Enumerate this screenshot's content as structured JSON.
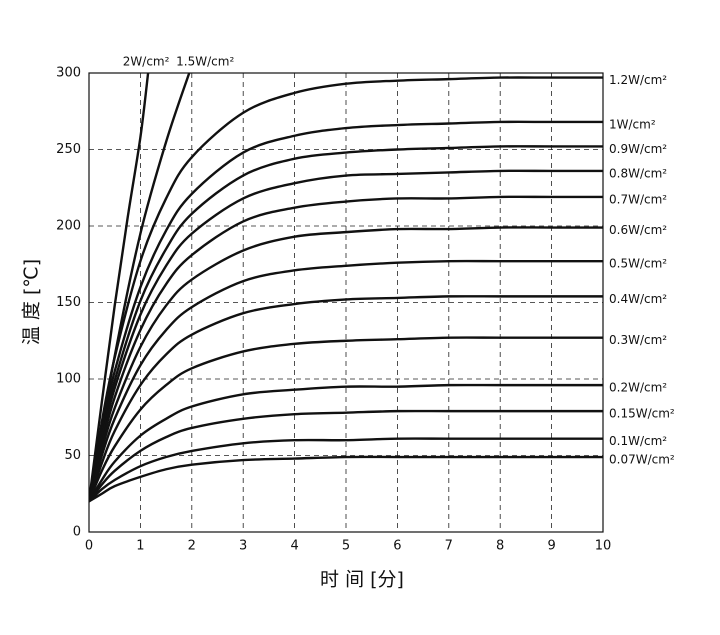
{
  "chart_data": {
    "type": "line",
    "xlabel": "时 间 [分]",
    "ylabel": "温 度 [℃]",
    "x": [
      0,
      0.25,
      0.5,
      1,
      1.5,
      2,
      3,
      4,
      5,
      6,
      7,
      8,
      9,
      10
    ],
    "xlim": [
      0,
      10
    ],
    "ylim": [
      0,
      300
    ],
    "xticks": [
      0,
      1,
      2,
      3,
      4,
      5,
      6,
      7,
      8,
      9,
      10
    ],
    "yticks": [
      0,
      50,
      100,
      150,
      200,
      250,
      300
    ],
    "grid": true,
    "color": "#111111",
    "series": [
      {
        "name": "2W/cm²",
        "x": [
          0,
          0.25,
          0.5,
          0.75,
          1,
          1.15
        ],
        "values": [
          20,
          85,
          148,
          205,
          258,
          300
        ]
      },
      {
        "name": "1.5W/cm²",
        "x": [
          0,
          0.5,
          1,
          1.5,
          1.95
        ],
        "values": [
          20,
          115,
          195,
          255,
          300
        ]
      },
      {
        "name": "1.2W/cm²",
        "values": [
          20,
          72,
          114,
          177,
          218,
          245,
          274,
          287,
          293,
          295,
          296,
          297,
          297,
          297
        ]
      },
      {
        "name": "1W/cm²",
        "values": [
          20,
          67,
          105,
          160,
          197,
          221,
          248,
          259,
          264,
          266,
          267,
          268,
          268,
          268
        ]
      },
      {
        "name": "0.9W/cm²",
        "values": [
          20,
          64,
          99,
          151,
          185,
          208,
          233,
          244,
          248,
          250,
          251,
          252,
          252,
          252
        ]
      },
      {
        "name": "0.8W/cm²",
        "values": [
          20,
          61,
          94,
          142,
          174,
          195,
          218,
          228,
          233,
          234,
          235,
          236,
          236,
          236
        ]
      },
      {
        "name": "0.7W/cm²",
        "values": [
          20,
          57,
          88,
          132,
          162,
          181,
          203,
          212,
          216,
          218,
          218,
          219,
          219,
          219
        ]
      },
      {
        "name": "0.6W/cm²",
        "values": [
          20,
          54,
          81,
          121,
          148,
          165,
          184,
          193,
          196,
          198,
          198,
          199,
          199,
          199
        ]
      },
      {
        "name": "0.5W/cm²",
        "values": [
          20,
          50,
          74,
          109,
          132,
          147,
          164,
          171,
          174,
          176,
          177,
          177,
          177,
          177
        ]
      },
      {
        "name": "0.4W/cm²",
        "values": [
          20,
          45,
          66,
          96,
          116,
          129,
          143,
          149,
          152,
          153,
          154,
          154,
          154,
          154
        ]
      },
      {
        "name": "0.3W/cm²",
        "values": [
          20,
          40,
          56,
          80,
          96,
          107,
          118,
          123,
          125,
          126,
          127,
          127,
          127,
          127
        ]
      },
      {
        "name": "0.2W/cm²",
        "values": [
          20,
          34,
          46,
          63,
          74,
          82,
          90,
          93,
          95,
          95,
          96,
          96,
          96,
          96
        ]
      },
      {
        "name": "0.15W/cm²",
        "values": [
          20,
          31,
          40,
          53,
          62,
          68,
          74,
          77,
          78,
          79,
          79,
          79,
          79,
          79
        ]
      },
      {
        "name": "0.1W/cm²",
        "values": [
          20,
          28,
          34,
          43,
          49,
          53,
          58,
          60,
          60,
          61,
          61,
          61,
          61,
          61
        ]
      },
      {
        "name": "0.07W/cm²",
        "values": [
          20,
          25,
          30,
          36,
          41,
          44,
          47,
          48,
          49,
          49,
          49,
          49,
          49,
          49
        ]
      }
    ]
  }
}
